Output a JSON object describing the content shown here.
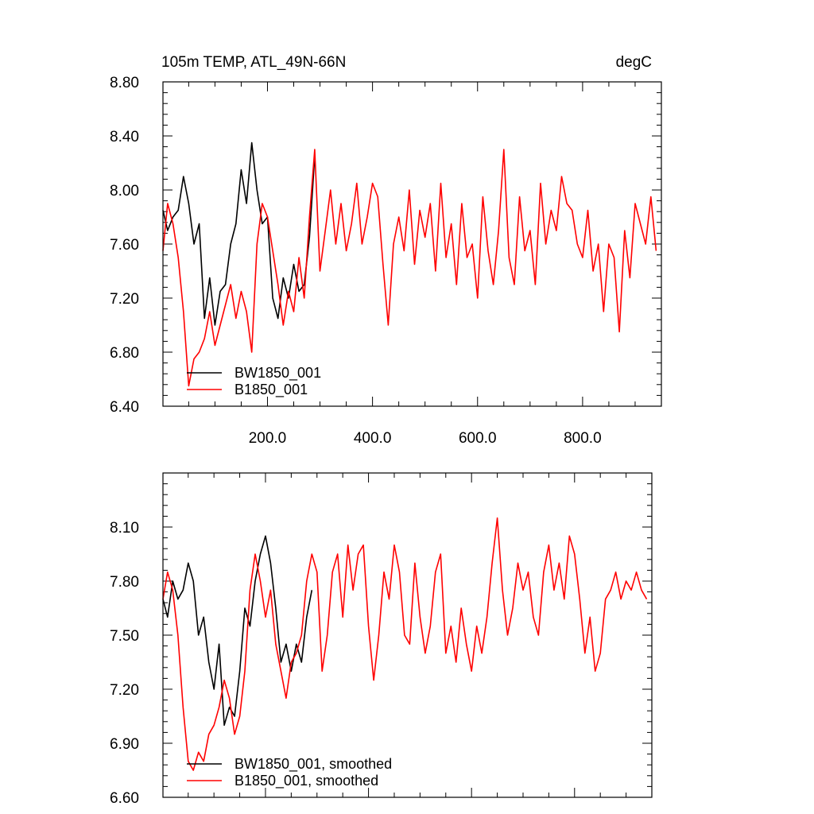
{
  "chart_data": [
    {
      "type": "line",
      "title_left": "105m TEMP, ATL_49N-66N",
      "title_right": "degC",
      "xlim": [
        1,
        950
      ],
      "ylim": [
        6.4,
        8.8
      ],
      "xticks": [
        200,
        400,
        600,
        800
      ],
      "xtick_labels": [
        "200.0",
        "400.0",
        "600.0",
        "800.0"
      ],
      "yticks": [
        6.4,
        6.8,
        7.2,
        7.6,
        8.0,
        8.4,
        8.8
      ],
      "ytick_labels": [
        "6.40",
        "6.80",
        "7.20",
        "7.60",
        "8.00",
        "8.40",
        "8.80"
      ],
      "legend_position": "bottom-left",
      "series": [
        {
          "name": "BW1850_001",
          "color": "#000000",
          "x": [
            1,
            10,
            20,
            30,
            40,
            50,
            60,
            70,
            80,
            90,
            100,
            110,
            120,
            130,
            140,
            150,
            160,
            170,
            180,
            190,
            200,
            210,
            220,
            230,
            240,
            250,
            260,
            270,
            280,
            290
          ],
          "y": [
            7.85,
            7.7,
            7.8,
            7.85,
            8.1,
            7.9,
            7.6,
            7.75,
            7.05,
            7.35,
            7.0,
            7.25,
            7.3,
            7.6,
            7.75,
            8.15,
            7.9,
            8.35,
            8.0,
            7.75,
            7.8,
            7.2,
            7.05,
            7.35,
            7.2,
            7.45,
            7.25,
            7.3,
            7.65,
            8.25
          ]
        },
        {
          "name": "B1850_001",
          "color": "#ff0000",
          "x": [
            1,
            10,
            20,
            30,
            40,
            50,
            60,
            70,
            80,
            90,
            100,
            110,
            120,
            130,
            140,
            150,
            160,
            170,
            180,
            190,
            200,
            210,
            220,
            230,
            240,
            250,
            260,
            270,
            280,
            290,
            300,
            310,
            320,
            330,
            340,
            350,
            360,
            370,
            380,
            390,
            400,
            410,
            420,
            430,
            440,
            450,
            460,
            470,
            480,
            490,
            500,
            510,
            520,
            530,
            540,
            550,
            560,
            570,
            580,
            590,
            600,
            610,
            620,
            630,
            640,
            650,
            660,
            670,
            680,
            690,
            700,
            710,
            720,
            730,
            740,
            750,
            760,
            770,
            780,
            790,
            800,
            810,
            820,
            830,
            840,
            850,
            860,
            870,
            880,
            890,
            900,
            910,
            920,
            930,
            940
          ],
          "y": [
            7.55,
            7.9,
            7.75,
            7.5,
            7.1,
            6.55,
            6.75,
            6.8,
            6.9,
            7.1,
            6.85,
            7.0,
            7.15,
            7.3,
            7.05,
            7.25,
            7.1,
            6.8,
            7.6,
            7.9,
            7.8,
            7.55,
            7.3,
            7.0,
            7.25,
            7.1,
            7.5,
            7.2,
            7.8,
            8.3,
            7.4,
            7.7,
            8.0,
            7.6,
            7.9,
            7.55,
            7.75,
            8.05,
            7.6,
            7.8,
            8.05,
            7.95,
            7.45,
            7.0,
            7.6,
            7.8,
            7.55,
            8.0,
            7.45,
            7.85,
            7.65,
            7.9,
            7.4,
            8.05,
            7.5,
            7.75,
            7.3,
            7.9,
            7.5,
            7.6,
            7.2,
            7.95,
            7.55,
            7.3,
            7.7,
            8.3,
            7.5,
            7.3,
            7.95,
            7.55,
            7.7,
            7.3,
            8.05,
            7.6,
            7.85,
            7.7,
            8.1,
            7.9,
            7.85,
            7.6,
            7.5,
            7.85,
            7.4,
            7.6,
            7.1,
            7.6,
            7.5,
            6.95,
            7.7,
            7.35,
            7.9,
            7.75,
            7.6,
            7.95,
            7.55
          ]
        }
      ]
    },
    {
      "type": "line",
      "xlim": [
        1,
        950
      ],
      "ylim": [
        6.6,
        8.4
      ],
      "yticks": [
        6.6,
        6.9,
        7.2,
        7.5,
        7.8,
        8.1
      ],
      "ytick_labels": [
        "6.60",
        "6.90",
        "7.20",
        "7.50",
        "7.80",
        "8.10"
      ],
      "legend_position": "bottom-left",
      "series": [
        {
          "name": "BW1850_001, smoothed",
          "color": "#000000",
          "x": [
            1,
            10,
            20,
            30,
            40,
            50,
            60,
            70,
            80,
            90,
            100,
            110,
            120,
            130,
            140,
            150,
            160,
            170,
            180,
            190,
            200,
            210,
            220,
            230,
            240,
            250,
            260,
            270,
            280,
            290
          ],
          "y": [
            7.7,
            7.6,
            7.8,
            7.7,
            7.75,
            7.9,
            7.8,
            7.5,
            7.6,
            7.35,
            7.2,
            7.45,
            7.0,
            7.1,
            7.05,
            7.3,
            7.65,
            7.55,
            7.8,
            7.95,
            8.05,
            7.9,
            7.65,
            7.35,
            7.45,
            7.3,
            7.45,
            7.35,
            7.6,
            7.75
          ]
        },
        {
          "name": "B1850_001, smoothed",
          "color": "#ff0000",
          "x": [
            1,
            10,
            20,
            30,
            40,
            50,
            60,
            70,
            80,
            90,
            100,
            110,
            120,
            130,
            140,
            150,
            160,
            170,
            180,
            190,
            200,
            210,
            220,
            230,
            240,
            250,
            260,
            270,
            280,
            290,
            300,
            310,
            320,
            330,
            340,
            350,
            360,
            370,
            380,
            390,
            400,
            410,
            420,
            430,
            440,
            450,
            460,
            470,
            480,
            490,
            500,
            510,
            520,
            530,
            540,
            550,
            560,
            570,
            580,
            590,
            600,
            610,
            620,
            630,
            640,
            650,
            660,
            670,
            680,
            690,
            700,
            710,
            720,
            730,
            740,
            750,
            760,
            770,
            780,
            790,
            800,
            810,
            820,
            830,
            840,
            850,
            860,
            870,
            880,
            890,
            900,
            910,
            920,
            930,
            940
          ],
          "y": [
            7.7,
            7.85,
            7.75,
            7.5,
            7.1,
            6.8,
            6.75,
            6.85,
            6.8,
            6.95,
            7.0,
            7.1,
            7.25,
            7.15,
            6.95,
            7.05,
            7.3,
            7.75,
            7.95,
            7.8,
            7.6,
            7.75,
            7.45,
            7.3,
            7.15,
            7.35,
            7.4,
            7.5,
            7.8,
            7.95,
            7.85,
            7.3,
            7.5,
            7.85,
            7.95,
            7.6,
            8.0,
            7.75,
            7.95,
            8.0,
            7.55,
            7.25,
            7.5,
            7.85,
            7.7,
            8.0,
            7.85,
            7.5,
            7.45,
            7.9,
            7.6,
            7.4,
            7.55,
            7.85,
            7.95,
            7.4,
            7.55,
            7.35,
            7.65,
            7.45,
            7.3,
            7.55,
            7.4,
            7.6,
            7.9,
            8.15,
            7.75,
            7.5,
            7.65,
            7.9,
            7.75,
            7.85,
            7.6,
            7.5,
            7.85,
            8.0,
            7.75,
            7.9,
            7.7,
            8.05,
            7.95,
            7.7,
            7.4,
            7.6,
            7.3,
            7.4,
            7.7,
            7.75,
            7.85,
            7.7,
            7.8,
            7.75,
            7.85,
            7.75,
            7.7
          ]
        }
      ]
    }
  ]
}
